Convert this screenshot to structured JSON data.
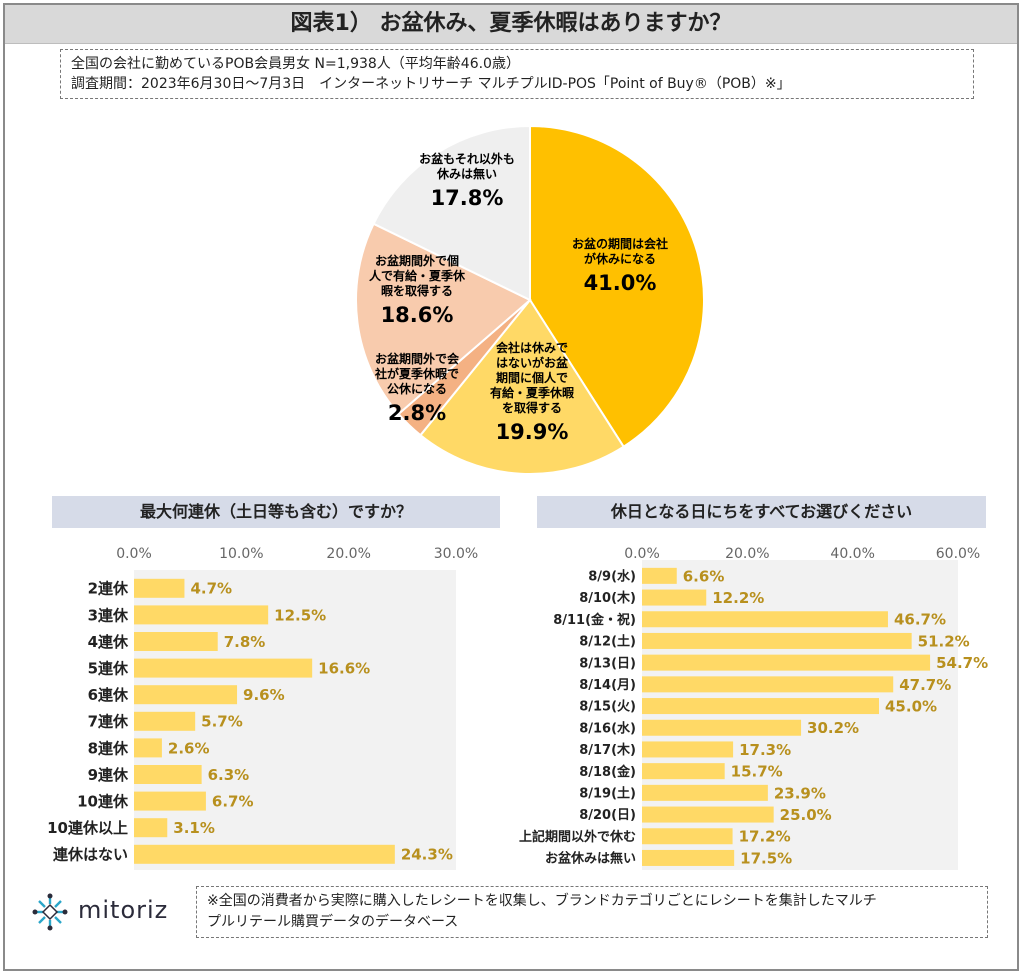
{
  "title": "図表1） お盆休み、夏季休暇はありますか？",
  "info": {
    "line1": "全国の会社に勤めているPOB会員男女 N=1,938人（平均年齢46.0歳）",
    "line2": "調査期間：2023年6月30日～7月3日　インターネットリサーチ マルチプルID-POS「Point of Buy®（POB）※」"
  },
  "colors": {
    "gold": "#ffc000",
    "lightgold": "#ffd966",
    "peach": "#f8cbad",
    "salmon": "#f4b183",
    "grey": "#efefef",
    "bar": "#ffd966",
    "label": "#b8901e",
    "header": "#d6dbe8"
  },
  "chart_data": [
    {
      "type": "pie",
      "title": "お盆休み、夏季休暇はありますか？",
      "slices": [
        {
          "label": [
            "お盆の期間は会社",
            "が休みになる"
          ],
          "value": 41.0,
          "pct_text": "41.0%",
          "color": "#ffc000"
        },
        {
          "label": [
            "会社は休みで",
            "はないがお盆",
            "期間に個人で",
            "有給・夏季休暇",
            "を取得する"
          ],
          "value": 19.9,
          "pct_text": "19.9%",
          "color": "#ffd966"
        },
        {
          "label": [
            "お盆期間外で会",
            "社が夏季休暇で",
            "公休になる"
          ],
          "value": 2.8,
          "pct_text": "2.8%",
          "color": "#f4b183"
        },
        {
          "label": [
            "お盆期間外で個",
            "人で有給・夏季休",
            "暇を取得する"
          ],
          "value": 18.6,
          "pct_text": "18.6%",
          "color": "#f8cbad"
        },
        {
          "label": [
            "お盆もそれ以外も",
            "休みは無い"
          ],
          "value": 17.8,
          "pct_text": "17.8%",
          "color": "#efefef"
        }
      ]
    },
    {
      "type": "bar",
      "title": "最大何連休（土日等も含む）ですか？",
      "ticks": [
        "0.0%",
        "10.0%",
        "20.0%",
        "30.0%"
      ],
      "xlim": [
        0,
        30
      ],
      "categories": [
        "2連休",
        "3連休",
        "4連休",
        "5連休",
        "6連休",
        "7連休",
        "8連休",
        "9連休",
        "10連休",
        "10連休以上",
        "連休はない"
      ],
      "values": [
        4.7,
        12.5,
        7.8,
        16.6,
        9.6,
        5.7,
        2.6,
        6.3,
        6.7,
        3.1,
        24.3
      ],
      "value_labels": [
        "4.7%",
        "12.5%",
        "7.8%",
        "16.6%",
        "9.6%",
        "5.7%",
        "2.6%",
        "6.3%",
        "6.7%",
        "3.1%",
        "24.3%"
      ]
    },
    {
      "type": "bar",
      "title": "休日となる日にちをすべてお選びください",
      "ticks": [
        "0.0%",
        "20.0%",
        "40.0%",
        "60.0%"
      ],
      "xlim": [
        0,
        60
      ],
      "categories": [
        "8/9(水)",
        "8/10(木)",
        "8/11(金・祝)",
        "8/12(土)",
        "8/13(日)",
        "8/14(月)",
        "8/15(火)",
        "8/16(水)",
        "8/17(木)",
        "8/18(金)",
        "8/19(土)",
        "8/20(日)",
        "上記期間以外で休む",
        "お盆休みは無い"
      ],
      "values": [
        6.6,
        12.2,
        46.7,
        51.2,
        54.7,
        47.7,
        45.0,
        30.2,
        17.3,
        15.7,
        23.9,
        25.0,
        17.2,
        17.5
      ],
      "value_labels": [
        "6.6%",
        "12.2%",
        "46.7%",
        "51.2%",
        "54.7%",
        "47.7%",
        "45.0%",
        "30.2%",
        "17.3%",
        "15.7%",
        "23.9%",
        "25.0%",
        "17.2%",
        "17.5%"
      ]
    }
  ],
  "logo": {
    "text": "mitoriz",
    "icon": "mitoriz-logo-icon"
  },
  "note": {
    "line1": "※全国の消費者から実際に購入したレシートを収集し、ブランドカテゴリごとにレシートを集計したマルチ",
    "line2": "プルリテール購買データのデータベース"
  }
}
